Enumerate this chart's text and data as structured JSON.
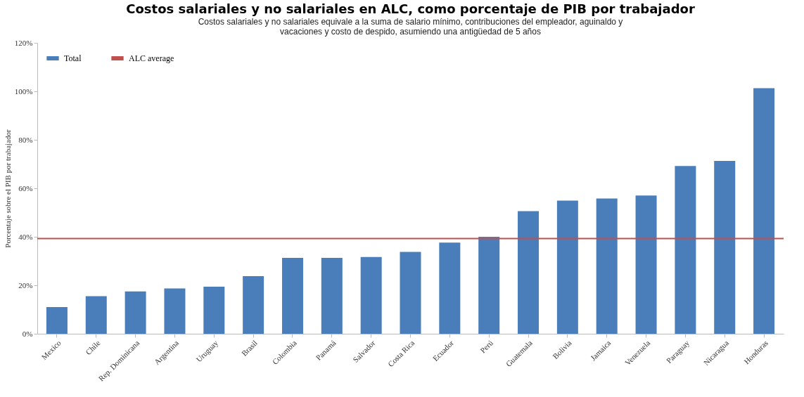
{
  "chart_data": {
    "type": "bar",
    "title": "Costos salariales y no salariales en ALC, como porcentaje de PIB por trabajador",
    "subtitle": "Costos salariales y no salariales equivale a la suma de salario mínimo, contribuciones del empleador, aguinaldo y vacaciones y costo de despido, asumiendo una antigüedad de 5 años",
    "ylabel": "Porcentaje sobre el PIB por trabajador",
    "categories": [
      "Mexico",
      "Chile",
      "Rep. Dominicana",
      "Argentina",
      "Uruguay",
      "Brasil",
      "Colombia",
      "Panamá",
      "Salvador",
      "Costa Rica",
      "Ecuador",
      "Perú",
      "Guatemala",
      "Bolivia",
      "Jamaica",
      "Venezuela",
      "Paraguay",
      "Nicaragua",
      "Honduras"
    ],
    "series": [
      {
        "name": "Total",
        "color": "#4a7ebb",
        "values": [
          11,
          15.5,
          17.5,
          18.7,
          19.4,
          23.8,
          31.3,
          31.3,
          31.7,
          33.8,
          37.6,
          40,
          50.6,
          54.9,
          55.8,
          57,
          69.2,
          71.3,
          101.3
        ]
      }
    ],
    "ref_lines": [
      {
        "axis": "y",
        "value": 39.3,
        "label": "ALC average",
        "color": "#c0504d"
      }
    ],
    "ylim": [
      0,
      120
    ],
    "yticks": [
      {
        "value": 0,
        "label": "0%"
      },
      {
        "value": 20,
        "label": "20%"
      },
      {
        "value": 40,
        "label": "40%"
      },
      {
        "value": 60,
        "label": "60%"
      },
      {
        "value": 80,
        "label": "80%"
      },
      {
        "value": 100,
        "label": "100%"
      },
      {
        "value": 120,
        "label": "120%"
      }
    ],
    "legend": "top left",
    "grid": false
  }
}
